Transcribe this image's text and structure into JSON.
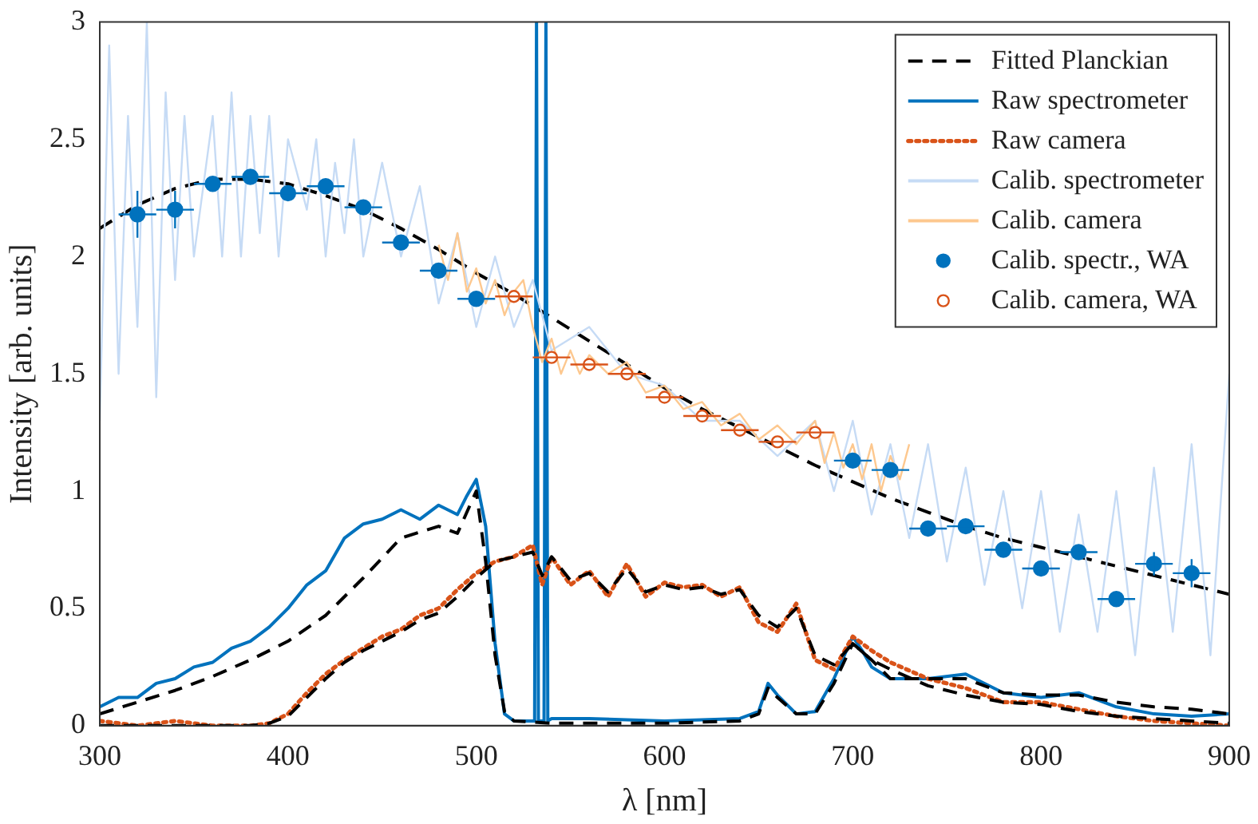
{
  "chart_data": {
    "type": "line",
    "xlabel": "λ [nm]",
    "ylabel": "Intensity [arb. units]",
    "xlim": [
      300,
      900
    ],
    "ylim": [
      0,
      3
    ],
    "xticks": [
      300,
      400,
      500,
      600,
      700,
      800,
      900
    ],
    "yticks": [
      0,
      0.5,
      1,
      1.5,
      2,
      2.5,
      3
    ],
    "grid": false,
    "legend": "top right",
    "series": [
      {
        "name": "Fitted Planckian",
        "line_style": "dashed",
        "color": "#000000",
        "x": [
          300,
          320,
          340,
          360,
          380,
          400,
          420,
          440,
          460,
          480,
          500,
          520,
          540,
          560,
          580,
          600,
          620,
          640,
          660,
          680,
          700,
          720,
          740,
          760,
          780,
          800,
          820,
          840,
          860,
          880,
          900
        ],
        "values": [
          2.12,
          2.22,
          2.29,
          2.33,
          2.33,
          2.31,
          2.26,
          2.2,
          2.12,
          2.03,
          1.93,
          1.84,
          1.74,
          1.64,
          1.54,
          1.44,
          1.35,
          1.27,
          1.19,
          1.11,
          1.04,
          0.97,
          0.91,
          0.85,
          0.8,
          0.76,
          0.72,
          0.68,
          0.64,
          0.6,
          0.56
        ]
      },
      {
        "name": "Raw spectrometer",
        "line_style": "solid",
        "color": "#0072bd",
        "x": [
          300,
          310,
          320,
          330,
          340,
          350,
          360,
          370,
          380,
          390,
          400,
          410,
          420,
          430,
          440,
          450,
          460,
          470,
          480,
          490,
          495,
          500,
          505,
          510,
          515,
          520,
          528,
          531,
          532,
          533,
          536,
          537,
          538,
          540,
          560,
          600,
          640,
          650,
          655,
          660,
          670,
          680,
          690,
          700,
          705,
          710,
          720,
          740,
          760,
          780,
          800,
          820,
          840,
          860,
          880,
          900
        ],
        "values": [
          0.08,
          0.12,
          0.12,
          0.18,
          0.2,
          0.25,
          0.27,
          0.33,
          0.36,
          0.42,
          0.5,
          0.6,
          0.66,
          0.8,
          0.86,
          0.88,
          0.92,
          0.88,
          0.94,
          0.9,
          0.98,
          1.05,
          0.85,
          0.35,
          0.05,
          0.02,
          0.02,
          0.02,
          3,
          0.02,
          0.02,
          3,
          0.02,
          0.03,
          0.03,
          0.02,
          0.03,
          0.06,
          0.18,
          0.13,
          0.05,
          0.06,
          0.2,
          0.38,
          0.32,
          0.25,
          0.2,
          0.2,
          0.22,
          0.14,
          0.12,
          0.14,
          0.08,
          0.05,
          0.04,
          0.05
        ]
      },
      {
        "name": "Raw camera",
        "line_style": "dotted",
        "color": "#d95319",
        "x": [
          300,
          320,
          340,
          360,
          380,
          390,
          400,
          410,
          420,
          430,
          440,
          450,
          460,
          470,
          480,
          490,
          500,
          510,
          520,
          530,
          535,
          540,
          550,
          560,
          570,
          580,
          590,
          600,
          610,
          620,
          630,
          640,
          650,
          660,
          670,
          680,
          690,
          700,
          710,
          720,
          740,
          760,
          780,
          800,
          820,
          840,
          860,
          880,
          900
        ],
        "values": [
          0.02,
          0,
          0.02,
          0,
          0,
          0.01,
          0.05,
          0.14,
          0.22,
          0.28,
          0.33,
          0.38,
          0.41,
          0.47,
          0.5,
          0.58,
          0.65,
          0.7,
          0.72,
          0.77,
          0.6,
          0.72,
          0.6,
          0.66,
          0.55,
          0.69,
          0.55,
          0.61,
          0.59,
          0.6,
          0.55,
          0.59,
          0.44,
          0.4,
          0.52,
          0.28,
          0.24,
          0.38,
          0.32,
          0.27,
          0.2,
          0.16,
          0.1,
          0.1,
          0.07,
          0.04,
          0.02,
          0.01,
          0
        ]
      },
      {
        "name": "Calib. spectrometer",
        "line_style": "solid",
        "color": "#c6dbf5",
        "x": [
          300,
          305,
          310,
          315,
          320,
          325,
          330,
          335,
          340,
          345,
          350,
          360,
          365,
          370,
          375,
          380,
          385,
          390,
          395,
          400,
          410,
          415,
          420,
          425,
          430,
          435,
          440,
          450,
          460,
          470,
          480,
          490,
          500,
          510,
          520,
          530,
          540,
          560,
          580,
          600,
          620,
          640,
          660,
          680,
          690,
          700,
          710,
          720,
          730,
          740,
          750,
          760,
          770,
          780,
          790,
          800,
          810,
          820,
          830,
          840,
          850,
          860,
          870,
          880,
          890,
          900
        ],
        "values": [
          1.3,
          2.9,
          1.5,
          2.6,
          1.7,
          3,
          1.4,
          2.7,
          1.9,
          2.6,
          2,
          2.6,
          2,
          2.7,
          2,
          2.6,
          2.1,
          2.6,
          2,
          2.5,
          2.2,
          2.5,
          2,
          2.4,
          2.1,
          2.5,
          2,
          2.4,
          2,
          2.3,
          1.8,
          2.1,
          1.7,
          2,
          1.7,
          1.9,
          1.6,
          1.7,
          1.5,
          1.45,
          1.3,
          1.3,
          1.15,
          1.3,
          1,
          1.3,
          0.9,
          1.2,
          0.8,
          1.2,
          0.7,
          1.1,
          0.6,
          1,
          0.5,
          1,
          0.4,
          0.9,
          0.4,
          1,
          0.3,
          1.1,
          0.4,
          1.2,
          0.3,
          1.5
        ]
      },
      {
        "name": "Calib. camera",
        "line_style": "solid",
        "color": "#fdc88f",
        "x": [
          480,
          485,
          490,
          495,
          500,
          505,
          510,
          515,
          520,
          525,
          530,
          535,
          540,
          545,
          550,
          555,
          560,
          570,
          580,
          590,
          600,
          610,
          620,
          630,
          640,
          650,
          660,
          670,
          680,
          685,
          690,
          695,
          700,
          705,
          710,
          715,
          720,
          725,
          730
        ],
        "values": [
          2.05,
          1.9,
          2.1,
          1.85,
          1.95,
          1.8,
          1.9,
          1.75,
          1.85,
          1.9,
          1.7,
          1.55,
          1.65,
          1.5,
          1.6,
          1.5,
          1.58,
          1.5,
          1.55,
          1.42,
          1.45,
          1.35,
          1.38,
          1.28,
          1.33,
          1.22,
          1.28,
          1.2,
          1.3,
          1.12,
          1.25,
          1.1,
          1.2,
          1.05,
          1.2,
          1,
          1.15,
          1.05,
          1.2
        ]
      },
      {
        "name": "Calib. spectr., WA",
        "type": "scatter",
        "marker": "circle",
        "color": "#0072bd",
        "x": [
          320,
          340,
          360,
          380,
          400,
          420,
          440,
          460,
          480,
          500,
          700,
          720,
          740,
          760,
          780,
          800,
          820,
          840,
          860,
          880
        ],
        "values": [
          2.18,
          2.2,
          2.31,
          2.34,
          2.27,
          2.3,
          2.21,
          2.06,
          1.94,
          1.82,
          1.13,
          1.09,
          0.84,
          0.85,
          0.75,
          0.67,
          0.74,
          0.54,
          0.69,
          0.65
        ],
        "xerrors": [
          10,
          10,
          10,
          10,
          10,
          10,
          10,
          10,
          10,
          10,
          10,
          10,
          10,
          10,
          10,
          10,
          10,
          10,
          10,
          10
        ],
        "errors": [
          0.1,
          0.08,
          null,
          null,
          null,
          null,
          null,
          null,
          null,
          null,
          null,
          null,
          null,
          null,
          null,
          null,
          null,
          null,
          0.05,
          0.06
        ]
      },
      {
        "name": "Calib. camera, WA",
        "type": "scatter",
        "marker": "circle",
        "color": "#d95319",
        "x": [
          520,
          540,
          560,
          580,
          600,
          620,
          640,
          660,
          680
        ],
        "values": [
          1.83,
          1.57,
          1.54,
          1.5,
          1.4,
          1.32,
          1.26,
          1.21,
          1.25
        ],
        "xerrors": [
          10,
          10,
          10,
          10,
          10,
          10,
          10,
          10,
          10
        ]
      },
      {
        "line_style": "dashed",
        "color": "#000000",
        "x": [
          300,
          320,
          340,
          360,
          380,
          400,
          420,
          440,
          460,
          480,
          490,
          500,
          505,
          510,
          515,
          520,
          540,
          600,
          640,
          650,
          655,
          660,
          670,
          680,
          690,
          700,
          710,
          720,
          740,
          760,
          780,
          800,
          820,
          840,
          860,
          880,
          900
        ],
        "values": [
          0.05,
          0.1,
          0.15,
          0.21,
          0.28,
          0.36,
          0.47,
          0.63,
          0.8,
          0.85,
          0.82,
          1.0,
          0.7,
          0.3,
          0.06,
          0.02,
          0.01,
          0.01,
          0.02,
          0.05,
          0.16,
          0.12,
          0.05,
          0.05,
          0.18,
          0.35,
          0.28,
          0.2,
          0.2,
          0.2,
          0.14,
          0.13,
          0.13,
          0.1,
          0.08,
          0.07,
          0.05
        ]
      },
      {
        "line_style": "dashed",
        "color": "#000000",
        "x": [
          300,
          320,
          340,
          360,
          380,
          390,
          400,
          410,
          420,
          430,
          440,
          450,
          460,
          470,
          480,
          490,
          500,
          510,
          520,
          530,
          535,
          540,
          550,
          560,
          570,
          580,
          590,
          600,
          610,
          620,
          630,
          640,
          650,
          660,
          670,
          680,
          690,
          700,
          710,
          720,
          740,
          760,
          780,
          800,
          820,
          840,
          860,
          880,
          900
        ],
        "values": [
          0,
          0,
          0,
          0,
          0,
          0.01,
          0.04,
          0.12,
          0.2,
          0.27,
          0.32,
          0.36,
          0.4,
          0.45,
          0.48,
          0.55,
          0.63,
          0.7,
          0.72,
          0.74,
          0.64,
          0.72,
          0.62,
          0.65,
          0.57,
          0.67,
          0.57,
          0.6,
          0.58,
          0.59,
          0.56,
          0.58,
          0.47,
          0.42,
          0.5,
          0.3,
          0.26,
          0.35,
          0.28,
          0.24,
          0.17,
          0.13,
          0.1,
          0.09,
          0.06,
          0.04,
          0.03,
          0.02,
          0.01
        ]
      }
    ]
  }
}
